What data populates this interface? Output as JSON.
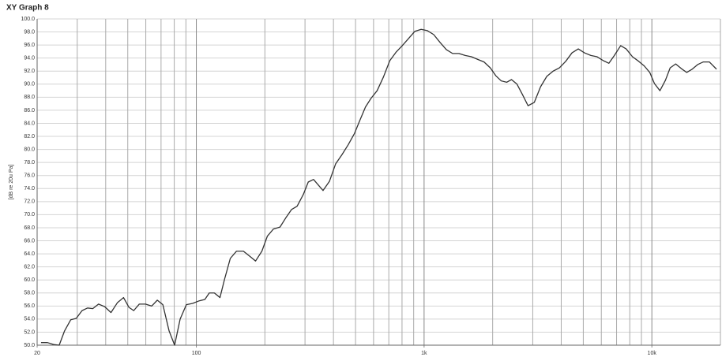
{
  "chart_data": {
    "type": "line",
    "title": "XY Graph 8",
    "ylabel": "[dB re 20u Pa]",
    "xscale": "log",
    "xlim": [
      20,
      20000
    ],
    "ylim": [
      50,
      100
    ],
    "xticks": [
      20,
      100,
      {
        "value": 1000,
        "label": "1k"
      },
      {
        "value": 10000,
        "label": "10k"
      }
    ],
    "xgrid": [
      30,
      40,
      50,
      60,
      70,
      80,
      90,
      200,
      300,
      400,
      500,
      600,
      700,
      800,
      900,
      2000,
      3000,
      4000,
      5000,
      6000,
      7000,
      8000,
      9000,
      20000
    ],
    "yticks": [
      {
        "value": 50,
        "label": "50.0"
      },
      {
        "value": 52,
        "label": "52.0"
      },
      {
        "value": 54,
        "label": "54.0"
      },
      {
        "value": 56,
        "label": "56.0"
      },
      {
        "value": 58,
        "label": "58.0"
      },
      {
        "value": 60,
        "label": "60.0"
      },
      {
        "value": 62,
        "label": "62.0"
      },
      {
        "value": 64,
        "label": "64.0"
      },
      {
        "value": 66,
        "label": "66.0"
      },
      {
        "value": 68,
        "label": "68.0"
      },
      {
        "value": 70,
        "label": "70.0"
      },
      {
        "value": 72,
        "label": "72.0"
      },
      {
        "value": 74,
        "label": "74.0"
      },
      {
        "value": 76,
        "label": "76.0"
      },
      {
        "value": 78,
        "label": "78.0"
      },
      {
        "value": 80,
        "label": "80.0"
      },
      {
        "value": 82,
        "label": "82.0"
      },
      {
        "value": 84,
        "label": "84.0"
      },
      {
        "value": 86,
        "label": "86.0"
      },
      {
        "value": 88,
        "label": "88.0"
      },
      {
        "value": 90,
        "label": "90.0"
      },
      {
        "value": 92,
        "label": "92.0"
      },
      {
        "value": 94,
        "label": "94.0"
      },
      {
        "value": 96,
        "label": "96.0"
      },
      {
        "value": 98,
        "label": "98.0"
      },
      {
        "value": 100,
        "label": "100.0"
      }
    ],
    "grid": true,
    "color": "#333333",
    "x": [
      20.8,
      22.2,
      23.6,
      25.0,
      26.4,
      28.1,
      29.7,
      31.5,
      33.3,
      35.1,
      37.2,
      39.6,
      42.2,
      45.0,
      47.9,
      50.6,
      53.1,
      56.2,
      59.8,
      63.7,
      67.4,
      71.3,
      75.9,
      80.3,
      84.9,
      90.4,
      96.3,
      103,
      109,
      114,
      120,
      127,
      133,
      141,
      150,
      161,
      172,
      182,
      194,
      205,
      218,
      233,
      248,
      262,
      277,
      295,
      310,
      327,
      346,
      360,
      384,
      409,
      436,
      464,
      494,
      523,
      553,
      584,
      622,
      663,
      707,
      753,
      802,
      855,
      911,
      971,
      1034,
      1102,
      1175,
      1252,
      1334,
      1422,
      1515,
      1614,
      1720,
      1833,
      1953,
      2064,
      2182,
      2307,
      2420,
      2558,
      2704,
      2860,
      3046,
      3246,
      3458,
      3686,
      3928,
      4186,
      4460,
      4752,
      5062,
      5396,
      5748,
      6126,
      6476,
      6846,
      7296,
      7714,
      8220,
      8758,
      9258,
      9790,
      10264,
      10852,
      11472,
      12032,
      12722,
      13452,
      14218,
      15032,
      15886,
      16796,
      17898,
      19224
    ],
    "values": [
      50.4,
      50.4,
      50.1,
      50.0,
      52.2,
      53.9,
      54.1,
      55.3,
      55.7,
      55.6,
      56.3,
      55.9,
      55.0,
      56.5,
      57.3,
      55.8,
      55.3,
      56.3,
      56.3,
      56.0,
      56.9,
      56.2,
      52.2,
      50.0,
      54.0,
      56.2,
      56.4,
      56.8,
      57.0,
      58.0,
      58.0,
      57.3,
      60.1,
      63.3,
      64.4,
      64.4,
      63.6,
      62.9,
      64.4,
      66.7,
      67.8,
      68.1,
      69.6,
      70.8,
      71.3,
      73.1,
      75.0,
      75.4,
      74.4,
      73.7,
      75.1,
      77.8,
      79.2,
      80.7,
      82.4,
      84.5,
      86.5,
      87.8,
      89.0,
      91.1,
      93.6,
      94.9,
      95.9,
      97.0,
      98.1,
      98.4,
      98.2,
      97.6,
      96.4,
      95.3,
      94.7,
      94.7,
      94.4,
      94.2,
      93.8,
      93.4,
      92.5,
      91.3,
      90.5,
      90.3,
      90.7,
      90.0,
      88.4,
      86.7,
      87.2,
      89.6,
      91.2,
      92.0,
      92.5,
      93.5,
      94.8,
      95.4,
      94.8,
      94.4,
      94.2,
      93.6,
      93.2,
      94.4,
      95.9,
      95.4,
      94.2,
      93.5,
      92.8,
      91.8,
      90.1,
      89.0,
      90.6,
      92.5,
      93.1,
      92.4,
      91.8,
      92.3,
      93.0,
      93.4,
      93.4,
      92.3
    ]
  }
}
